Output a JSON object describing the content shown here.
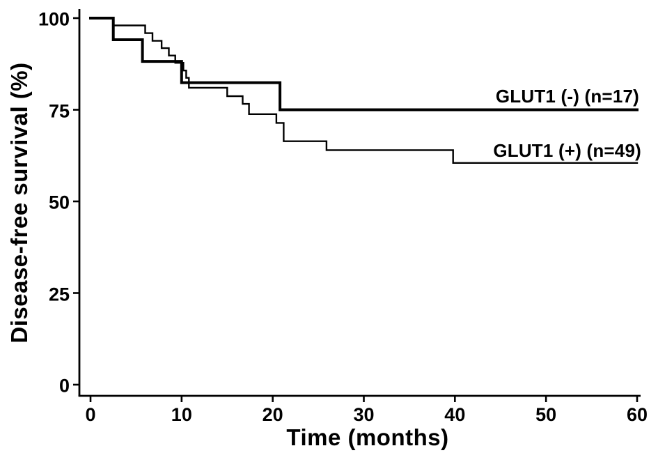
{
  "figure": {
    "background": "#ffffff",
    "ink_color": "#000000"
  },
  "chart_data": {
    "type": "line",
    "chart_style": "kaplan-meier-step",
    "title": "",
    "xlabel": "Time (months)",
    "ylabel": "Disease-free survival (%)",
    "xlim": [
      0,
      60
    ],
    "ylim": [
      0,
      100
    ],
    "x_ticks": [
      0,
      10,
      20,
      30,
      40,
      50,
      60
    ],
    "y_ticks": [
      0,
      25,
      50,
      75,
      100
    ],
    "grid": false,
    "legend_position": "inline-right-of-curves",
    "series": [
      {
        "name": "glut1-negative",
        "label": "GLUT1 (-) (n=17)",
        "n": 17,
        "color": "#000000",
        "line_width": 4,
        "final_survival_pct": 75,
        "steps": [
          [
            0,
            100
          ],
          [
            2.5,
            100
          ],
          [
            2.5,
            94.1
          ],
          [
            5.7,
            94.1
          ],
          [
            5.7,
            88.2
          ],
          [
            10.0,
            88.2
          ],
          [
            10.0,
            82.4
          ],
          [
            20.8,
            82.4
          ],
          [
            20.8,
            75
          ],
          [
            60,
            75
          ]
        ]
      },
      {
        "name": "glut1-positive",
        "label": "GLUT1 (+) (n=49)",
        "n": 49,
        "color": "#000000",
        "line_width": 2.4,
        "final_survival_pct": 60.5,
        "steps": [
          [
            0,
            100
          ],
          [
            2.5,
            100
          ],
          [
            2.5,
            98.0
          ],
          [
            6.0,
            98.0
          ],
          [
            6.0,
            95.9
          ],
          [
            6.8,
            95.9
          ],
          [
            6.8,
            93.8
          ],
          [
            7.8,
            93.8
          ],
          [
            7.8,
            91.8
          ],
          [
            8.6,
            91.8
          ],
          [
            8.6,
            89.8
          ],
          [
            9.3,
            89.8
          ],
          [
            9.3,
            87.8
          ],
          [
            10.2,
            87.8
          ],
          [
            10.2,
            85.7
          ],
          [
            10.5,
            85.7
          ],
          [
            10.5,
            83.7
          ],
          [
            10.8,
            83.7
          ],
          [
            10.8,
            81.0
          ],
          [
            15.0,
            81.0
          ],
          [
            15.0,
            78.7
          ],
          [
            16.7,
            78.7
          ],
          [
            16.7,
            76.6
          ],
          [
            17.4,
            76.6
          ],
          [
            17.4,
            73.8
          ],
          [
            20.4,
            73.8
          ],
          [
            20.4,
            71.4
          ],
          [
            21.2,
            71.4
          ],
          [
            21.2,
            66.4
          ],
          [
            25.9,
            66.4
          ],
          [
            25.9,
            64.0
          ],
          [
            39.8,
            64.0
          ],
          [
            39.8,
            60.5
          ],
          [
            60,
            60.5
          ]
        ]
      }
    ]
  }
}
